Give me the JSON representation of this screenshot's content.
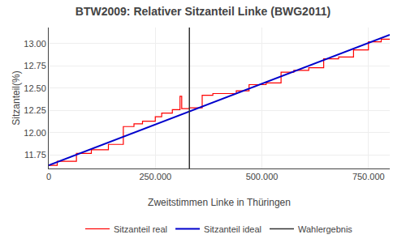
{
  "chart_data": {
    "type": "line",
    "title": "BTW2009: Relativer Sitzanteil Linke (BWG2011)",
    "xlabel": "Zweitstimmen Linke in Thüringen",
    "ylabel": "Sitzanteil(%)",
    "xlim": [
      0,
      800000
    ],
    "ylim": [
      11.6,
      13.18
    ],
    "xticks": [
      0,
      {
        "value": 250000,
        "label": "250.000"
      },
      {
        "value": 500000,
        "label": "500.000"
      },
      {
        "value": 750000,
        "label": "750.000"
      }
    ],
    "yticks": [
      11.75,
      {
        "value": 12.0,
        "label": "12.00"
      },
      12.25,
      {
        "value": 12.5,
        "label": "12.50"
      },
      12.75,
      {
        "value": 13.0,
        "label": "13.00"
      }
    ],
    "grid": true,
    "legend": "bottom",
    "series": [
      {
        "name": "Sitzanteil real",
        "color": "#ff0000",
        "x": [
          0,
          20000,
          20000,
          65000,
          65000,
          100000,
          100000,
          140000,
          140000,
          175000,
          175000,
          200000,
          200000,
          220000,
          220000,
          250000,
          250000,
          265000,
          265000,
          290000,
          290000,
          308000,
          308000,
          312000,
          312000,
          330000,
          330000,
          360000,
          360000,
          385000,
          385000,
          410000,
          410000,
          440000,
          440000,
          470000,
          470000,
          510000,
          510000,
          545000,
          545000,
          575000,
          575000,
          610000,
          610000,
          645000,
          645000,
          680000,
          680000,
          715000,
          715000,
          750000,
          750000,
          780000,
          780000,
          800000
        ],
        "values": [
          11.635,
          11.635,
          11.68,
          11.68,
          11.77,
          11.77,
          11.81,
          11.81,
          11.87,
          11.87,
          12.07,
          12.07,
          12.1,
          12.1,
          12.13,
          12.13,
          12.18,
          12.18,
          12.22,
          12.22,
          12.26,
          12.26,
          12.41,
          12.41,
          12.27,
          12.27,
          12.28,
          12.28,
          12.42,
          12.42,
          12.44,
          12.44,
          12.44,
          12.44,
          12.47,
          12.47,
          12.54,
          12.54,
          12.56,
          12.56,
          12.68,
          12.68,
          12.7,
          12.7,
          12.73,
          12.73,
          12.83,
          12.83,
          12.85,
          12.85,
          12.93,
          12.93,
          13.02,
          13.02,
          13.05,
          13.05
        ]
      },
      {
        "name": "Sitzanteil ideal",
        "color": "#0000cc",
        "x": [
          0,
          800000
        ],
        "values": [
          11.635,
          13.1
        ]
      },
      {
        "name": "Wahlergebnis",
        "type": "vline",
        "color": "#333333",
        "x": 330000
      }
    ]
  }
}
